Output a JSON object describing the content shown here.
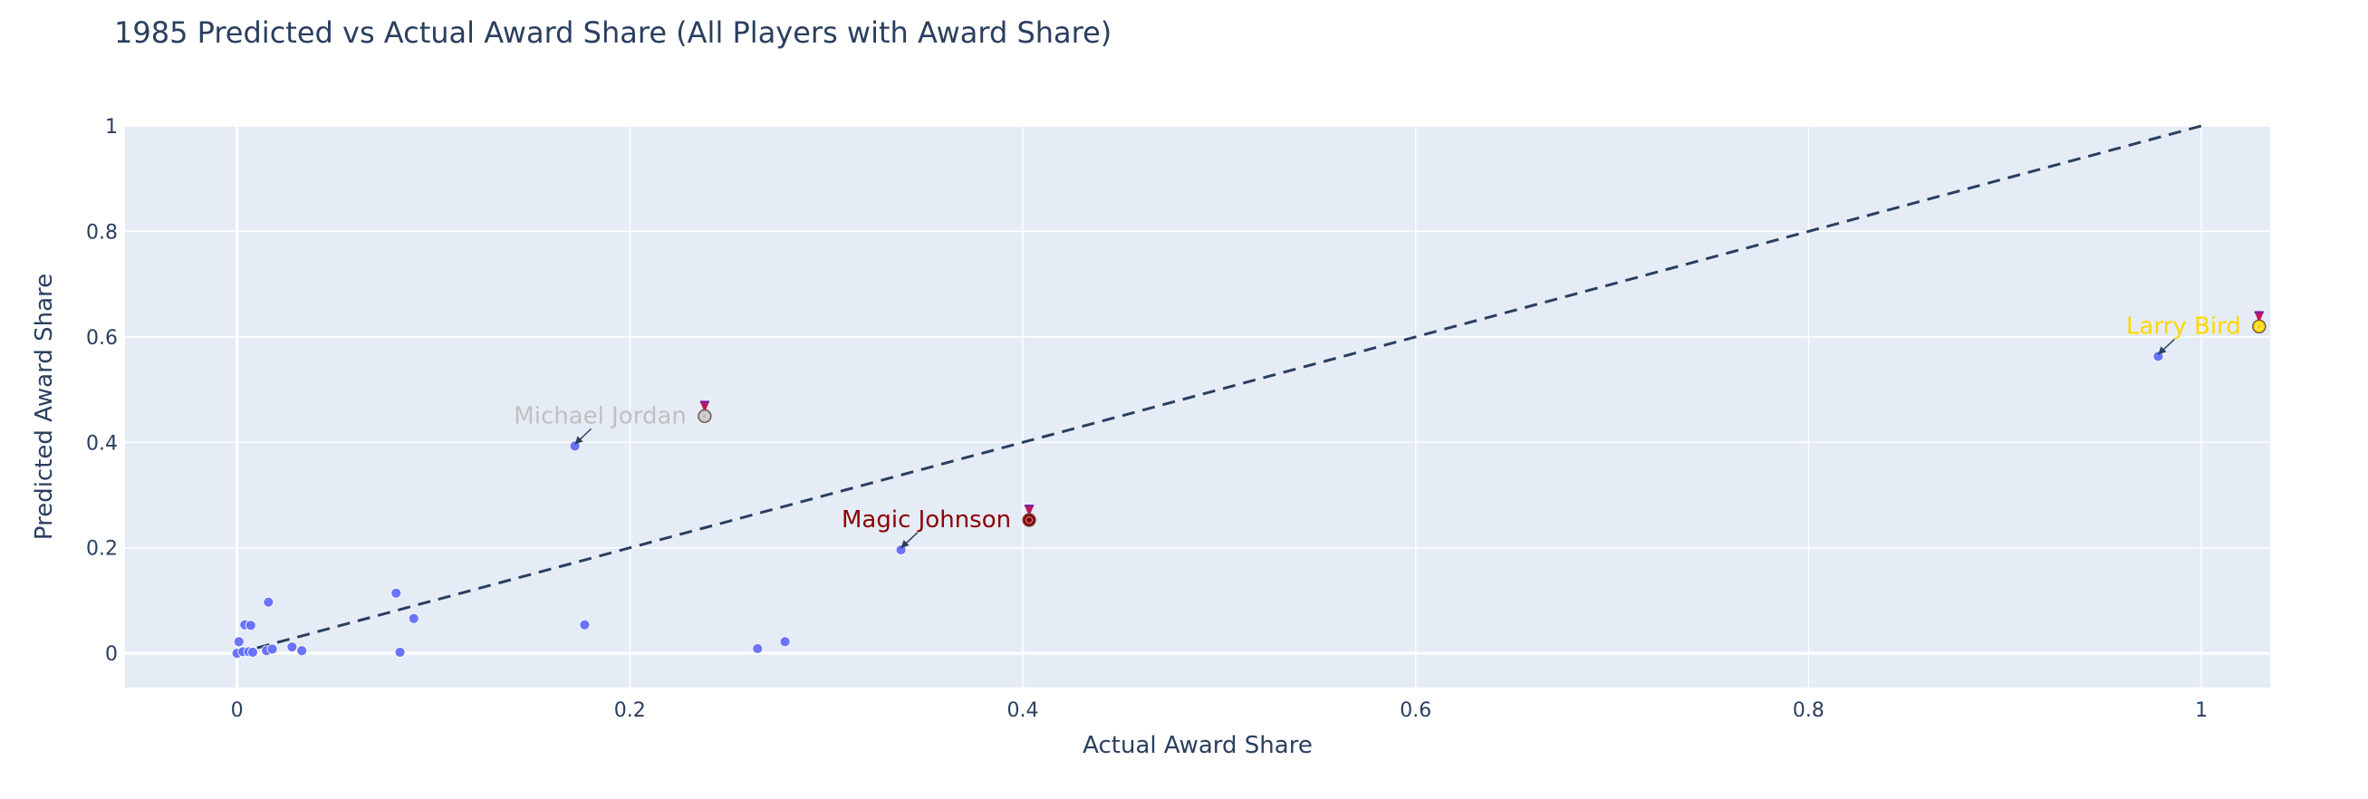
{
  "chart_data": {
    "type": "scatter",
    "title": "1985 Predicted vs Actual Award Share (All Players with Award Share)",
    "xlabel": "Actual Award Share",
    "ylabel": "Predicted Award Share",
    "xlim": [
      -0.057,
      1.035
    ],
    "ylim": [
      -0.065,
      1.0
    ],
    "xticks": [
      "0",
      "0.2",
      "0.4",
      "0.6",
      "0.8",
      "1"
    ],
    "yticks": [
      "0",
      "0.2",
      "0.4",
      "0.6",
      "0.8",
      "1"
    ],
    "grid": true,
    "colors": {
      "plot_bg": "#e5ecf6",
      "grid": "#ffffff",
      "points": "#636efa",
      "reference_line": "#2a3f5f",
      "gold": "#ffd700",
      "silver": "#c0c0c0",
      "bronze": "#8b0000"
    },
    "reference_line": {
      "x": [
        0,
        1
      ],
      "y": [
        0,
        1
      ],
      "style": "dashed"
    },
    "points": [
      {
        "x": 0.978,
        "y": 0.563
      },
      {
        "x": 0.338,
        "y": 0.196
      },
      {
        "x": 0.172,
        "y": 0.393
      },
      {
        "x": 0.0,
        "y": 0.0
      },
      {
        "x": 0.001,
        "y": 0.022
      },
      {
        "x": 0.003,
        "y": 0.003
      },
      {
        "x": 0.004,
        "y": 0.054
      },
      {
        "x": 0.006,
        "y": 0.003
      },
      {
        "x": 0.007,
        "y": 0.053
      },
      {
        "x": 0.008,
        "y": 0.002
      },
      {
        "x": 0.015,
        "y": 0.005
      },
      {
        "x": 0.016,
        "y": 0.097
      },
      {
        "x": 0.018,
        "y": 0.008
      },
      {
        "x": 0.028,
        "y": 0.012
      },
      {
        "x": 0.033,
        "y": 0.005
      },
      {
        "x": 0.081,
        "y": 0.114
      },
      {
        "x": 0.083,
        "y": 0.002
      },
      {
        "x": 0.09,
        "y": 0.066
      },
      {
        "x": 0.177,
        "y": 0.054
      },
      {
        "x": 0.265,
        "y": 0.009
      },
      {
        "x": 0.279,
        "y": 0.022
      }
    ],
    "annotations": [
      {
        "text": "Larry Bird",
        "icon": "gold-medal-icon",
        "color": "#ffd700",
        "x": 0.978,
        "y": 0.563
      },
      {
        "text": "Michael Jordan",
        "icon": "silver-medal-icon",
        "color": "#c0c0c0",
        "x": 0.172,
        "y": 0.393
      },
      {
        "text": "Magic Johnson",
        "icon": "bronze-medal-icon",
        "color": "#8b0000",
        "x": 0.338,
        "y": 0.196
      }
    ]
  }
}
